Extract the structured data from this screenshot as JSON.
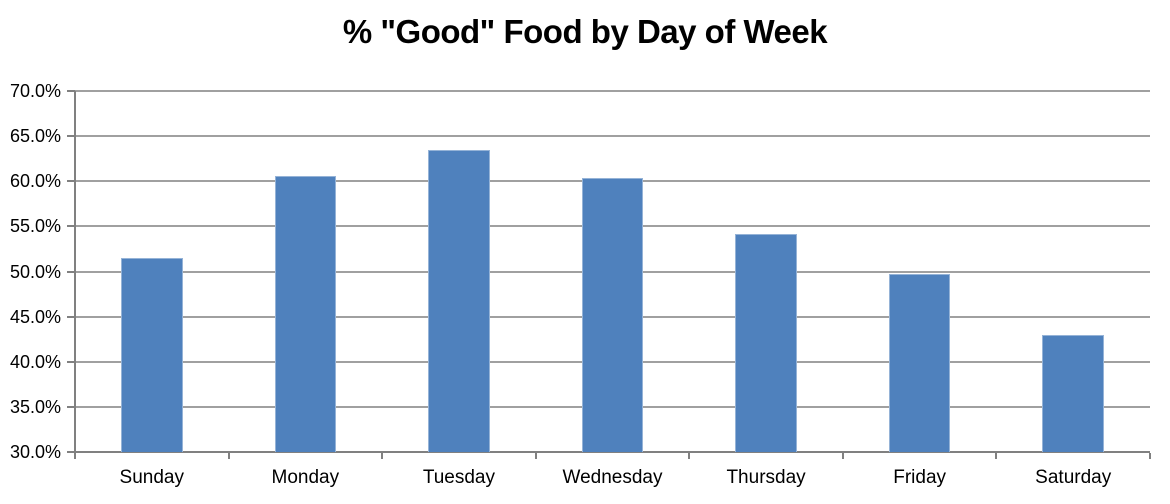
{
  "chart_data": {
    "type": "bar",
    "title": "% \"Good\" Food by Day of Week",
    "categories": [
      "Sunday",
      "Monday",
      "Tuesday",
      "Wednesday",
      "Thursday",
      "Friday",
      "Saturday"
    ],
    "values": [
      51.5,
      60.6,
      63.5,
      60.4,
      54.1,
      49.7,
      43.0
    ],
    "xlabel": "",
    "ylabel": "",
    "ylim": [
      30,
      70
    ],
    "ytick_step": 5,
    "yticks": [
      70,
      65,
      60,
      55,
      50,
      45,
      40,
      35,
      30
    ],
    "ytick_labels": [
      "70.0%",
      "65.0%",
      "60.0%",
      "55.0%",
      "50.0%",
      "45.0%",
      "40.0%",
      "35.0%",
      "30.0%"
    ],
    "grid": true,
    "legend": false,
    "bar_color": "#4F81BD",
    "bar_border_color": "#95B3D7",
    "gridline_color": "#A0A0A0",
    "axis_color": "#808080",
    "text_color": "#000000",
    "background_color": "#FFFFFF"
  }
}
